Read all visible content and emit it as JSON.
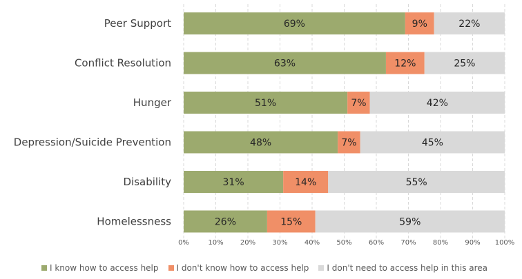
{
  "chart_data": {
    "type": "bar",
    "orientation": "horizontal",
    "stacked": true,
    "categories": [
      "Peer Support",
      "Conflict Resolution",
      "Hunger",
      "Depression/Suicide Prevention",
      "Disability",
      "Homelessness"
    ],
    "series": [
      {
        "name": "I know how to access help",
        "color": "#9caa6e",
        "values": [
          69,
          63,
          51,
          48,
          31,
          26
        ]
      },
      {
        "name": "I don't know how to access help",
        "color": "#f08f67",
        "values": [
          9,
          12,
          7,
          7,
          14,
          15
        ]
      },
      {
        "name": "I don't need to access help in this area",
        "color": "#d9d9d9",
        "values": [
          22,
          25,
          42,
          45,
          55,
          59
        ]
      }
    ],
    "xticks": [
      "0%",
      "10%",
      "20%",
      "30%",
      "40%",
      "50%",
      "60%",
      "70%",
      "80%",
      "90%",
      "100%"
    ],
    "xlim": [
      0,
      100
    ],
    "value_suffix": "%",
    "grid": true,
    "legend_position": "bottom"
  }
}
